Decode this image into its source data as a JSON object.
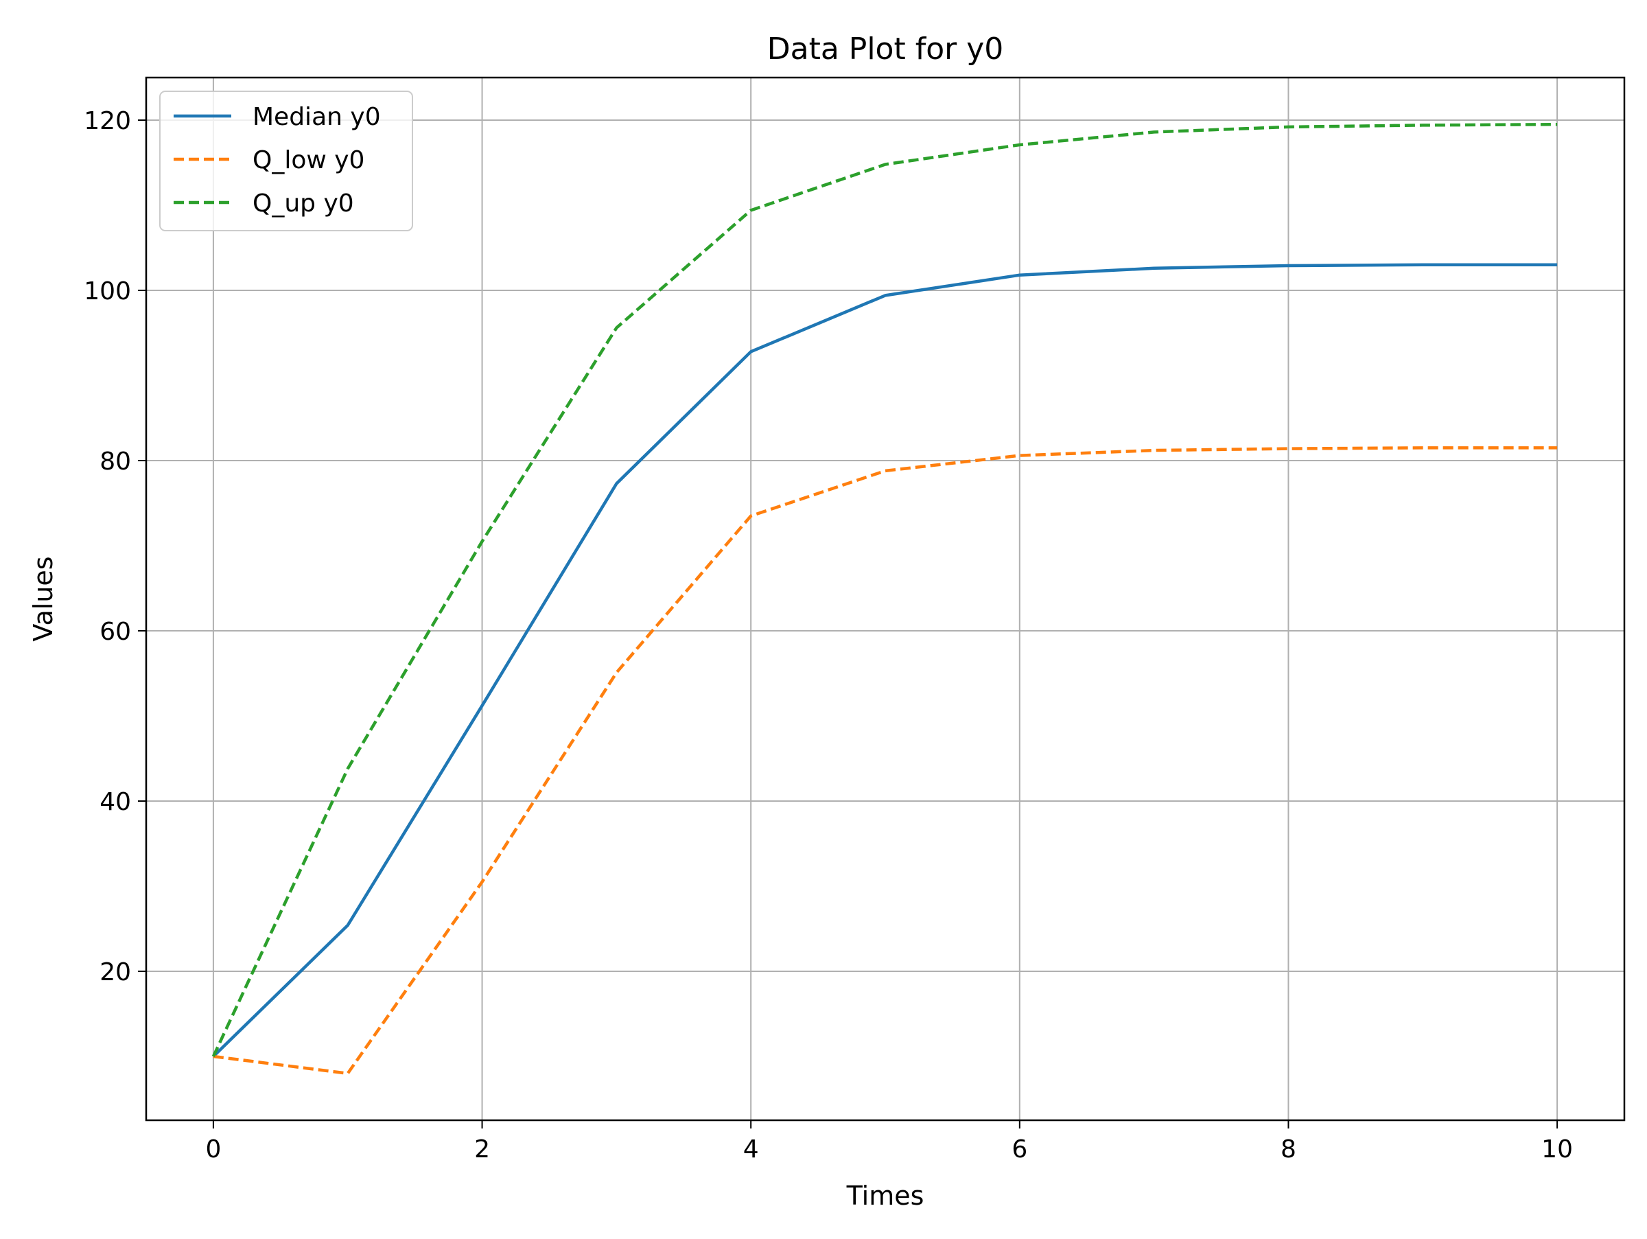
{
  "chart_data": {
    "type": "line",
    "title": "Data Plot for y0",
    "xlabel": "Times",
    "ylabel": "Values",
    "x": [
      0,
      1,
      2,
      3,
      4,
      5,
      6,
      7,
      8,
      9,
      10
    ],
    "series": [
      {
        "name": "Median y0",
        "style": "solid",
        "color": "#1f77b4",
        "values": [
          10.0,
          25.4,
          51.2,
          77.3,
          92.8,
          99.4,
          101.8,
          102.6,
          102.9,
          103.0,
          103.0
        ]
      },
      {
        "name": "Q_low y0",
        "style": "dashed",
        "color": "#ff7f0e",
        "values": [
          10.0,
          8.0,
          30.5,
          55.1,
          73.5,
          78.8,
          80.6,
          81.2,
          81.4,
          81.5,
          81.5
        ]
      },
      {
        "name": "Q_up y0",
        "style": "dashed",
        "color": "#2ca02c",
        "values": [
          10.0,
          43.8,
          70.5,
          95.6,
          109.4,
          114.8,
          117.1,
          118.6,
          119.2,
          119.4,
          119.5
        ]
      }
    ],
    "xlim": [
      -0.5,
      10.5
    ],
    "ylim": [
      2.5,
      125
    ],
    "xticks": [
      0,
      2,
      4,
      6,
      8,
      10
    ],
    "yticks": [
      20,
      40,
      60,
      80,
      100,
      120
    ],
    "grid": true,
    "legend_position": "top-left"
  }
}
